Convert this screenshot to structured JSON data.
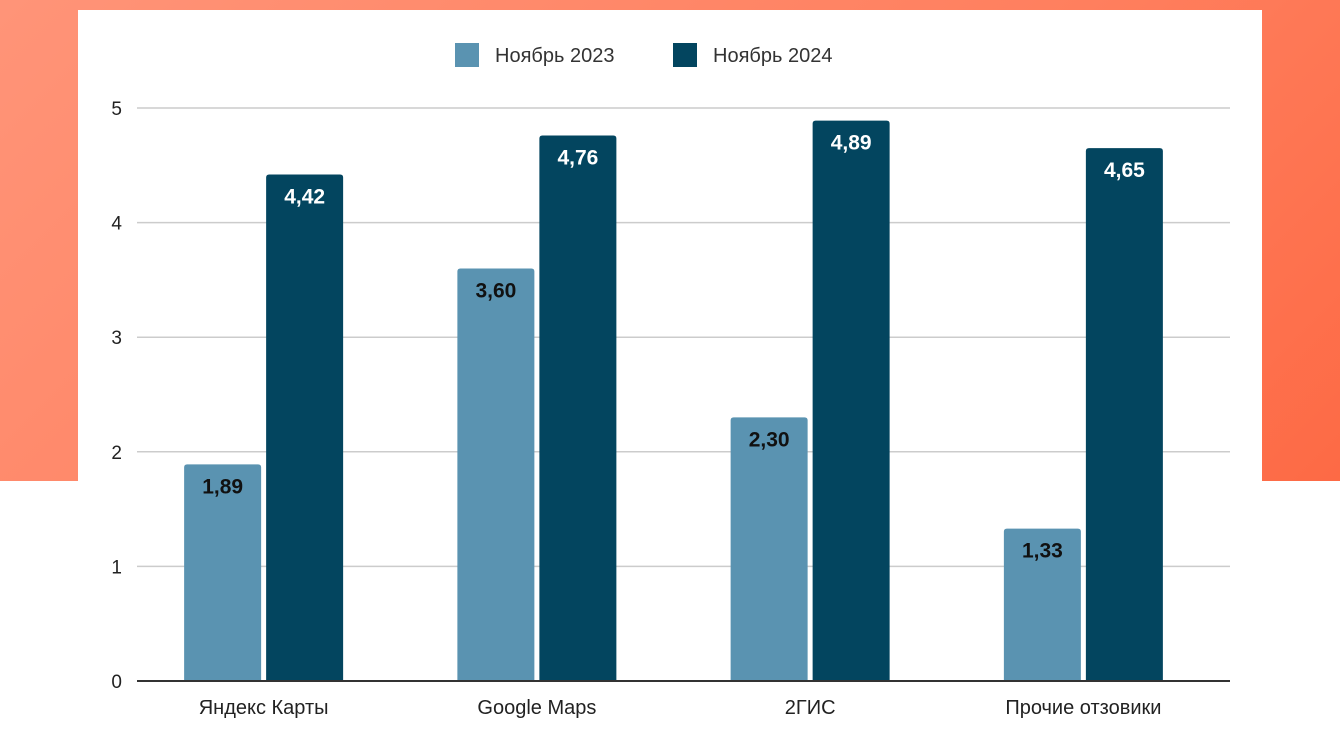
{
  "chart_data": {
    "type": "bar",
    "title": "",
    "xlabel": "",
    "ylabel": "",
    "categories": [
      "Яндекс Карты",
      "Google Maps",
      "2ГИС",
      "Прочие отзовики"
    ],
    "series": [
      {
        "name": "Ноябрь 2023",
        "color": "#5a93b1",
        "values": [
          1.89,
          3.6,
          2.3,
          1.33
        ],
        "labels": [
          "1,89",
          "3,60",
          "2,30",
          "1,33"
        ]
      },
      {
        "name": "Ноябрь 2024",
        "color": "#03455f",
        "values": [
          4.42,
          4.76,
          4.89,
          4.65
        ],
        "labels": [
          "4,42",
          "4,76",
          "4,89",
          "4,65"
        ]
      }
    ],
    "ylim": [
      0,
      5
    ],
    "yticks": [
      "0",
      "1",
      "2",
      "3",
      "4",
      "5"
    ],
    "grid": true,
    "legend": "top-center"
  }
}
